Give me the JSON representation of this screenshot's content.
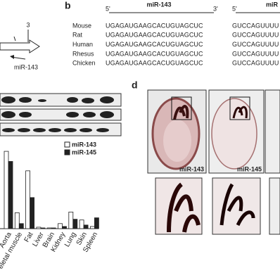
{
  "panel_b": {
    "label": "b",
    "header": {
      "five_prime": "5'",
      "mirna": "miR-143",
      "three_prime": "3'",
      "five_prime_2": "5'",
      "mirna_2": "miR"
    },
    "rows": [
      {
        "species": "Mouse",
        "seq1": "UGAGAUGAAGCACUGUAGCUC",
        "seq2": "GUCCAGUUUU"
      },
      {
        "species": "Rat",
        "seq1": "UGAGAUGAAGCACUGUAGCUC",
        "seq2": "GUCCAGUUUU"
      },
      {
        "species": "Human",
        "seq1": "UGAGAUGAAGCACUGUAGCUC",
        "seq2": "GUCCAGUUUU"
      },
      {
        "species": "Rhesus",
        "seq1": "UGAGAUGAAGCACUGUAGCUC",
        "seq2": "GUCCAGUUUU"
      },
      {
        "species": "Chicken",
        "seq1": "UGAGAUGAAGCACUGUAGCUC",
        "seq2": "GUCCAGUUUU"
      }
    ]
  },
  "panel_a": {
    "exon": "3",
    "transcript": "miR-143"
  },
  "panel_d": {
    "label": "d",
    "images": [
      "miR-143",
      "miR-145"
    ]
  },
  "chart_data": {
    "type": "bar",
    "categories": [
      "Aorta",
      "eletal muscle",
      "Fat",
      "Liver",
      "Brain",
      "Kidney",
      "Lung",
      "Skin",
      "Spleen"
    ],
    "series": [
      {
        "name": "miR-143",
        "color": "#ffffff",
        "values": [
          107,
          22,
          80,
          2,
          1,
          7,
          23,
          12,
          3
        ]
      },
      {
        "name": "miR-145",
        "color": "#222222",
        "values": [
          93,
          7,
          43,
          1,
          1,
          3,
          13,
          5,
          15
        ]
      }
    ],
    "ylim": [
      0,
      110
    ]
  }
}
